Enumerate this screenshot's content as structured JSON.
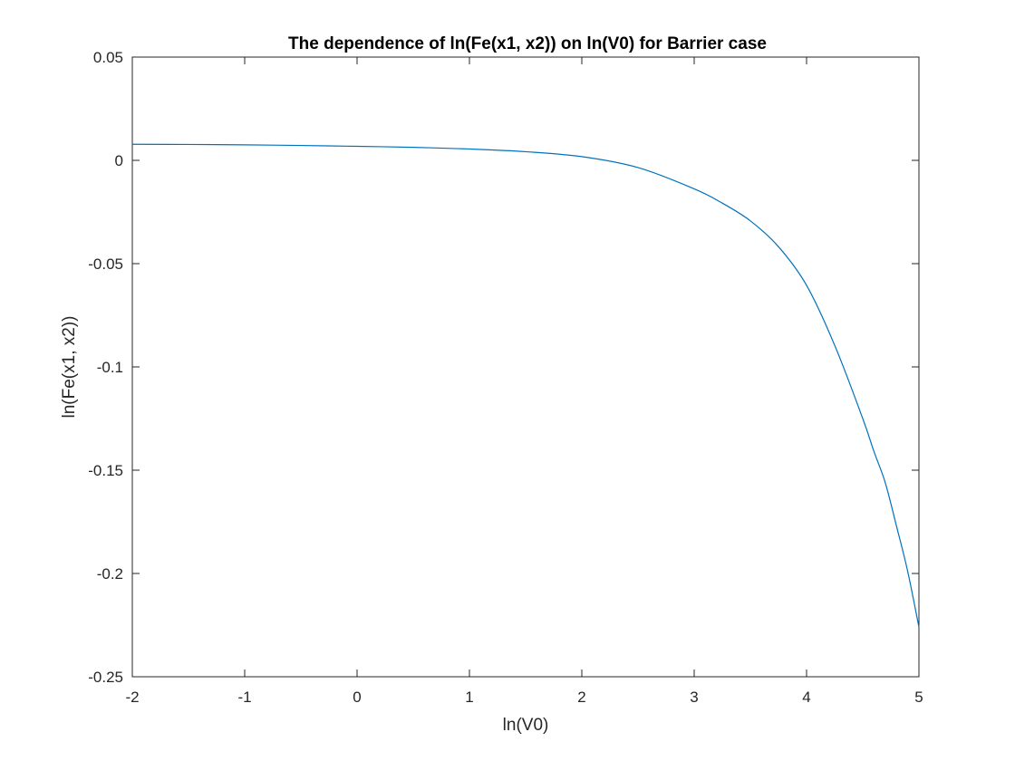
{
  "chart_data": {
    "type": "line",
    "title": "The dependence of ln(Fe(x1, x2)) on ln(V0) for Barrier case",
    "xlabel": "ln(V0)",
    "ylabel": "ln(Fe(x1, x2))",
    "xlim": [
      -2,
      5
    ],
    "ylim": [
      -0.25,
      0.05
    ],
    "xticks": [
      -2,
      -1,
      0,
      1,
      2,
      3,
      4,
      5
    ],
    "xtick_labels": [
      "-2",
      "-1",
      "0",
      "1",
      "2",
      "3",
      "4",
      "5"
    ],
    "yticks": [
      -0.25,
      -0.2,
      -0.15,
      -0.1,
      -0.05,
      0,
      0.05
    ],
    "ytick_labels": [
      "-0.25",
      "-0.2",
      "-0.15",
      "-0.1",
      "-0.05",
      "0",
      "0.05"
    ],
    "grid": false,
    "box": true,
    "series": [
      {
        "color": "#0072BD",
        "x": [
          -2,
          -1.5,
          -1,
          -0.5,
          0,
          0.5,
          1,
          1.5,
          2,
          2.5,
          3,
          3.25,
          3.5,
          3.75,
          4,
          4.25,
          4.5,
          4.6,
          4.7,
          4.8,
          4.9,
          5
        ],
        "y": [
          0.0078,
          0.0077,
          0.0075,
          0.0072,
          0.0068,
          0.0063,
          0.0055,
          0.0042,
          0.0018,
          -0.0035,
          -0.0138,
          -0.0207,
          -0.0293,
          -0.0418,
          -0.0605,
          -0.0895,
          -0.125,
          -0.141,
          -0.156,
          -0.177,
          -0.199,
          -0.226
        ]
      }
    ]
  }
}
